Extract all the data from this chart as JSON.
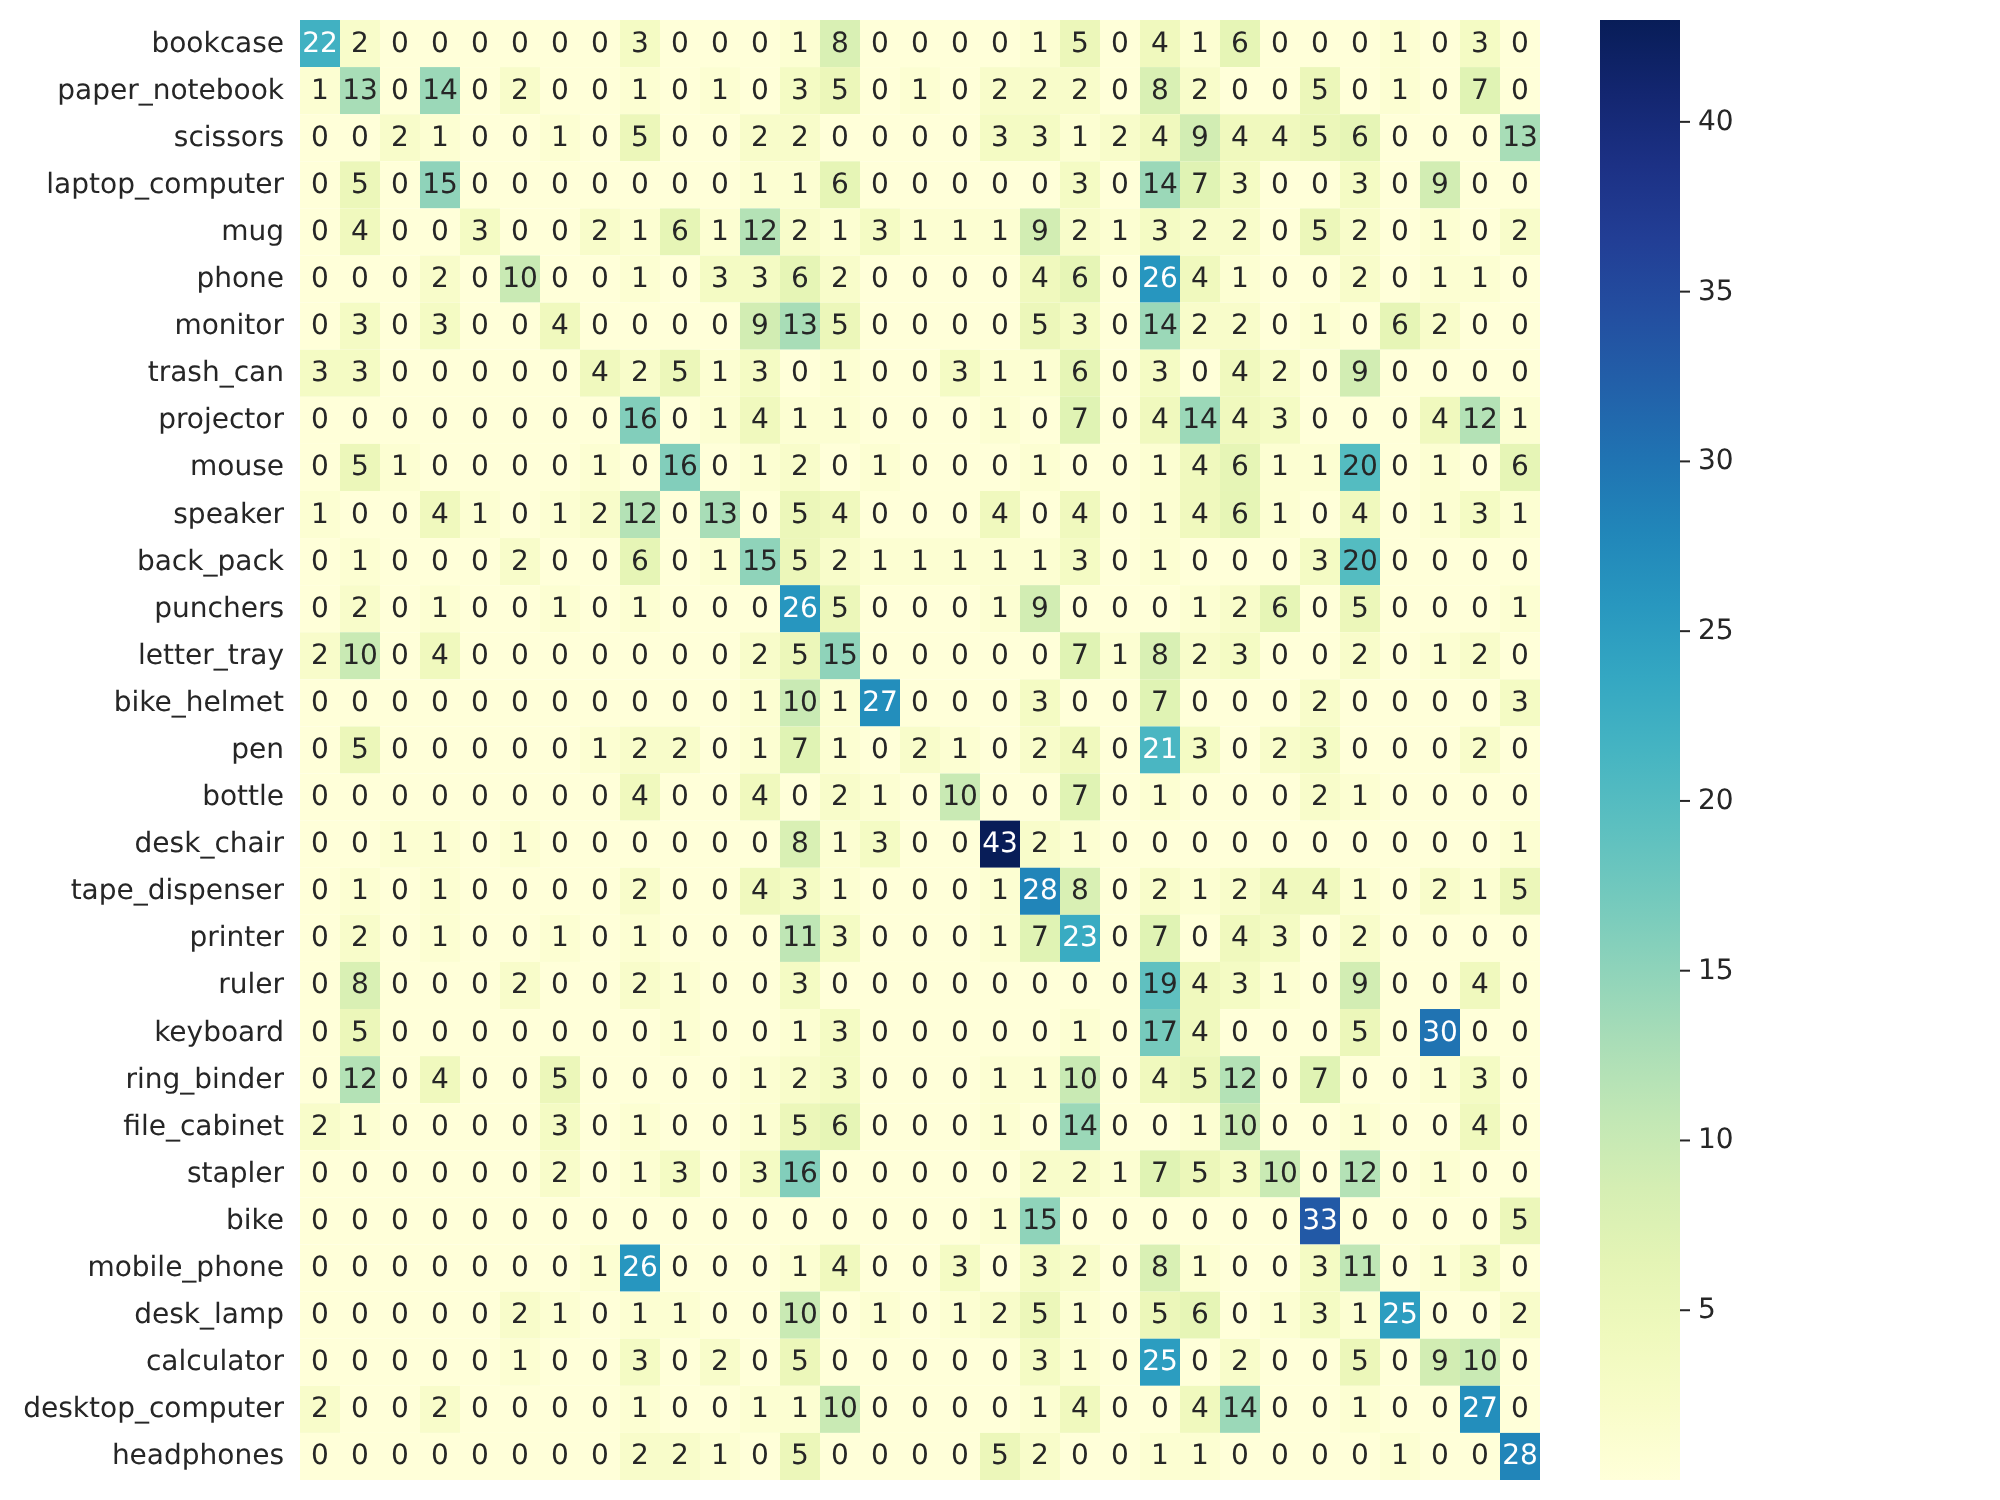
{
  "chart_data": {
    "type": "heatmap",
    "categories": [
      null,
      null,
      null,
      null,
      null,
      null,
      null,
      null,
      null,
      null,
      null,
      null,
      null,
      null,
      null,
      null,
      null,
      null,
      null,
      null,
      null,
      null,
      null,
      null,
      null,
      null,
      null,
      null,
      null,
      null,
      null
    ],
    "y_categories": [
      "bookcase",
      "paper_notebook",
      "scissors",
      "laptop_computer",
      "mug",
      "phone",
      "monitor",
      "trash_can",
      "projector",
      "mouse",
      "speaker",
      "back_pack",
      "punchers",
      "letter_tray",
      "bike_helmet",
      "pen",
      "bottle",
      "desk_chair",
      "tape_dispenser",
      "printer",
      "ruler",
      "keyboard",
      "ring_binder",
      "file_cabinet",
      "stapler",
      "bike",
      "mobile_phone",
      "desk_lamp",
      "calculator",
      "desktop_computer",
      "headphones"
    ],
    "cells": [
      [
        22,
        2,
        0,
        0,
        0,
        0,
        0,
        0,
        3,
        0,
        0,
        0,
        1,
        8,
        0,
        0,
        0,
        0,
        1,
        5,
        0,
        4,
        1,
        6,
        0,
        0,
        0,
        1,
        0,
        3,
        0
      ],
      [
        1,
        13,
        0,
        14,
        0,
        2,
        0,
        0,
        1,
        0,
        1,
        0,
        3,
        5,
        0,
        1,
        0,
        2,
        2,
        2,
        0,
        8,
        2,
        0,
        0,
        5,
        0,
        1,
        0,
        7,
        0
      ],
      [
        0,
        0,
        2,
        1,
        0,
        0,
        1,
        0,
        5,
        0,
        0,
        2,
        2,
        0,
        0,
        0,
        0,
        3,
        3,
        1,
        2,
        4,
        9,
        4,
        4,
        5,
        6,
        0,
        0,
        0,
        13
      ],
      [
        0,
        5,
        0,
        15,
        0,
        0,
        0,
        0,
        0,
        0,
        0,
        1,
        1,
        6,
        0,
        0,
        0,
        0,
        0,
        3,
        0,
        14,
        7,
        3,
        0,
        0,
        3,
        0,
        9,
        0,
        0
      ],
      [
        0,
        4,
        0,
        0,
        3,
        0,
        0,
        2,
        1,
        6,
        1,
        12,
        2,
        1,
        3,
        1,
        1,
        1,
        9,
        2,
        1,
        3,
        2,
        2,
        0,
        5,
        2,
        0,
        1,
        0,
        2
      ],
      [
        0,
        0,
        0,
        2,
        0,
        10,
        0,
        0,
        1,
        0,
        3,
        3,
        6,
        2,
        0,
        0,
        0,
        0,
        4,
        6,
        0,
        26,
        4,
        1,
        0,
        0,
        2,
        0,
        1,
        1,
        0
      ],
      [
        0,
        3,
        0,
        3,
        0,
        0,
        4,
        0,
        0,
        0,
        0,
        9,
        13,
        5,
        0,
        0,
        0,
        0,
        5,
        3,
        0,
        14,
        2,
        2,
        0,
        1,
        0,
        6,
        2,
        0,
        0
      ],
      [
        3,
        3,
        0,
        0,
        0,
        0,
        0,
        4,
        2,
        5,
        1,
        3,
        0,
        1,
        0,
        0,
        3,
        1,
        1,
        6,
        0,
        3,
        0,
        4,
        2,
        0,
        9,
        0,
        0,
        0,
        0
      ],
      [
        0,
        0,
        0,
        0,
        0,
        0,
        0,
        0,
        16,
        0,
        1,
        4,
        1,
        1,
        0,
        0,
        0,
        1,
        0,
        7,
        0,
        4,
        14,
        4,
        3,
        0,
        0,
        0,
        4,
        12,
        1
      ],
      [
        0,
        5,
        1,
        0,
        0,
        0,
        0,
        1,
        0,
        16,
        0,
        1,
        2,
        0,
        1,
        0,
        0,
        0,
        1,
        0,
        0,
        1,
        4,
        6,
        1,
        1,
        20,
        0,
        1,
        0,
        6
      ],
      [
        1,
        0,
        0,
        4,
        1,
        0,
        1,
        2,
        12,
        0,
        13,
        0,
        5,
        4,
        0,
        0,
        0,
        4,
        0,
        4,
        0,
        1,
        4,
        6,
        1,
        0,
        4,
        0,
        1,
        3,
        1
      ],
      [
        0,
        1,
        0,
        0,
        0,
        2,
        0,
        0,
        6,
        0,
        1,
        15,
        5,
        2,
        1,
        1,
        1,
        1,
        1,
        3,
        0,
        1,
        0,
        0,
        0,
        3,
        20,
        0,
        0,
        0,
        0
      ],
      [
        0,
        2,
        0,
        1,
        0,
        0,
        1,
        0,
        1,
        0,
        0,
        0,
        26,
        5,
        0,
        0,
        0,
        1,
        9,
        0,
        0,
        0,
        1,
        2,
        6,
        0,
        5,
        0,
        0,
        0,
        1
      ],
      [
        2,
        10,
        0,
        4,
        0,
        0,
        0,
        0,
        0,
        0,
        0,
        2,
        5,
        15,
        0,
        0,
        0,
        0,
        0,
        7,
        1,
        8,
        2,
        3,
        0,
        0,
        2,
        0,
        1,
        2,
        0
      ],
      [
        0,
        0,
        0,
        0,
        0,
        0,
        0,
        0,
        0,
        0,
        0,
        1,
        10,
        1,
        27,
        0,
        0,
        0,
        3,
        0,
        0,
        7,
        0,
        0,
        0,
        2,
        0,
        0,
        0,
        0,
        3
      ],
      [
        0,
        5,
        0,
        0,
        0,
        0,
        0,
        1,
        2,
        2,
        0,
        1,
        7,
        1,
        0,
        2,
        1,
        0,
        2,
        4,
        0,
        21,
        3,
        0,
        2,
        3,
        0,
        0,
        0,
        2,
        0
      ],
      [
        0,
        0,
        0,
        0,
        0,
        0,
        0,
        0,
        4,
        0,
        0,
        4,
        0,
        2,
        1,
        0,
        10,
        0,
        0,
        7,
        0,
        1,
        0,
        0,
        0,
        2,
        1,
        0,
        0,
        0,
        0
      ],
      [
        0,
        0,
        1,
        1,
        0,
        1,
        0,
        0,
        0,
        0,
        0,
        0,
        8,
        1,
        3,
        0,
        0,
        43,
        2,
        1,
        0,
        0,
        0,
        0,
        0,
        0,
        0,
        0,
        0,
        0,
        1
      ],
      [
        0,
        1,
        0,
        1,
        0,
        0,
        0,
        0,
        2,
        0,
        0,
        4,
        3,
        1,
        0,
        0,
        0,
        1,
        28,
        8,
        0,
        2,
        1,
        2,
        4,
        4,
        1,
        0,
        2,
        1,
        5
      ],
      [
        0,
        2,
        0,
        1,
        0,
        0,
        1,
        0,
        1,
        0,
        0,
        0,
        11,
        3,
        0,
        0,
        0,
        1,
        7,
        23,
        0,
        7,
        0,
        4,
        3,
        0,
        2,
        0,
        0,
        0,
        0
      ],
      [
        0,
        8,
        0,
        0,
        0,
        2,
        0,
        0,
        2,
        1,
        0,
        0,
        3,
        0,
        0,
        0,
        0,
        0,
        0,
        0,
        0,
        19,
        4,
        3,
        1,
        0,
        9,
        0,
        0,
        4,
        0
      ],
      [
        0,
        5,
        0,
        0,
        0,
        0,
        0,
        0,
        0,
        1,
        0,
        0,
        1,
        3,
        0,
        0,
        0,
        0,
        0,
        1,
        0,
        17,
        4,
        0,
        0,
        0,
        5,
        0,
        30,
        0,
        0
      ],
      [
        0,
        12,
        0,
        4,
        0,
        0,
        5,
        0,
        0,
        0,
        0,
        1,
        2,
        3,
        0,
        0,
        0,
        1,
        1,
        10,
        0,
        4,
        5,
        12,
        0,
        7,
        0,
        0,
        1,
        3,
        0
      ],
      [
        2,
        1,
        0,
        0,
        0,
        0,
        3,
        0,
        1,
        0,
        0,
        1,
        5,
        6,
        0,
        0,
        0,
        1,
        0,
        14,
        0,
        0,
        1,
        10,
        0,
        0,
        1,
        0,
        0,
        4,
        0
      ],
      [
        0,
        0,
        0,
        0,
        0,
        0,
        2,
        0,
        1,
        3,
        0,
        3,
        16,
        0,
        0,
        0,
        0,
        0,
        2,
        2,
        1,
        7,
        5,
        3,
        10,
        0,
        12,
        0,
        1,
        0,
        0
      ],
      [
        0,
        0,
        0,
        0,
        0,
        0,
        0,
        0,
        0,
        0,
        0,
        0,
        0,
        0,
        0,
        0,
        0,
        1,
        15,
        0,
        0,
        0,
        0,
        0,
        0,
        33,
        0,
        0,
        0,
        0,
        5
      ],
      [
        0,
        0,
        0,
        0,
        0,
        0,
        0,
        1,
        26,
        0,
        0,
        0,
        1,
        4,
        0,
        0,
        3,
        0,
        3,
        2,
        0,
        8,
        1,
        0,
        0,
        3,
        11,
        0,
        1,
        3,
        0
      ],
      [
        0,
        0,
        0,
        0,
        0,
        2,
        1,
        0,
        1,
        1,
        0,
        0,
        10,
        0,
        1,
        0,
        1,
        2,
        5,
        1,
        0,
        5,
        6,
        0,
        1,
        3,
        1,
        25,
        0,
        0,
        2
      ],
      [
        0,
        0,
        0,
        0,
        0,
        1,
        0,
        0,
        3,
        0,
        2,
        0,
        5,
        0,
        0,
        0,
        0,
        0,
        3,
        1,
        0,
        25,
        0,
        2,
        0,
        0,
        5,
        0,
        9,
        10,
        0
      ],
      [
        2,
        0,
        0,
        2,
        0,
        0,
        0,
        0,
        1,
        0,
        0,
        1,
        1,
        10,
        0,
        0,
        0,
        0,
        1,
        4,
        0,
        0,
        4,
        14,
        0,
        0,
        1,
        0,
        0,
        27,
        0
      ],
      [
        0,
        0,
        0,
        0,
        0,
        0,
        0,
        0,
        2,
        2,
        1,
        0,
        5,
        0,
        0,
        0,
        0,
        5,
        2,
        0,
        0,
        1,
        1,
        0,
        0,
        0,
        0,
        1,
        0,
        0,
        28
      ]
    ],
    "clim": [
      0,
      43
    ],
    "cticks": [
      5,
      10,
      15,
      20,
      25,
      30,
      35,
      40
    ],
    "data_labels": true,
    "tick_labels": "y"
  }
}
